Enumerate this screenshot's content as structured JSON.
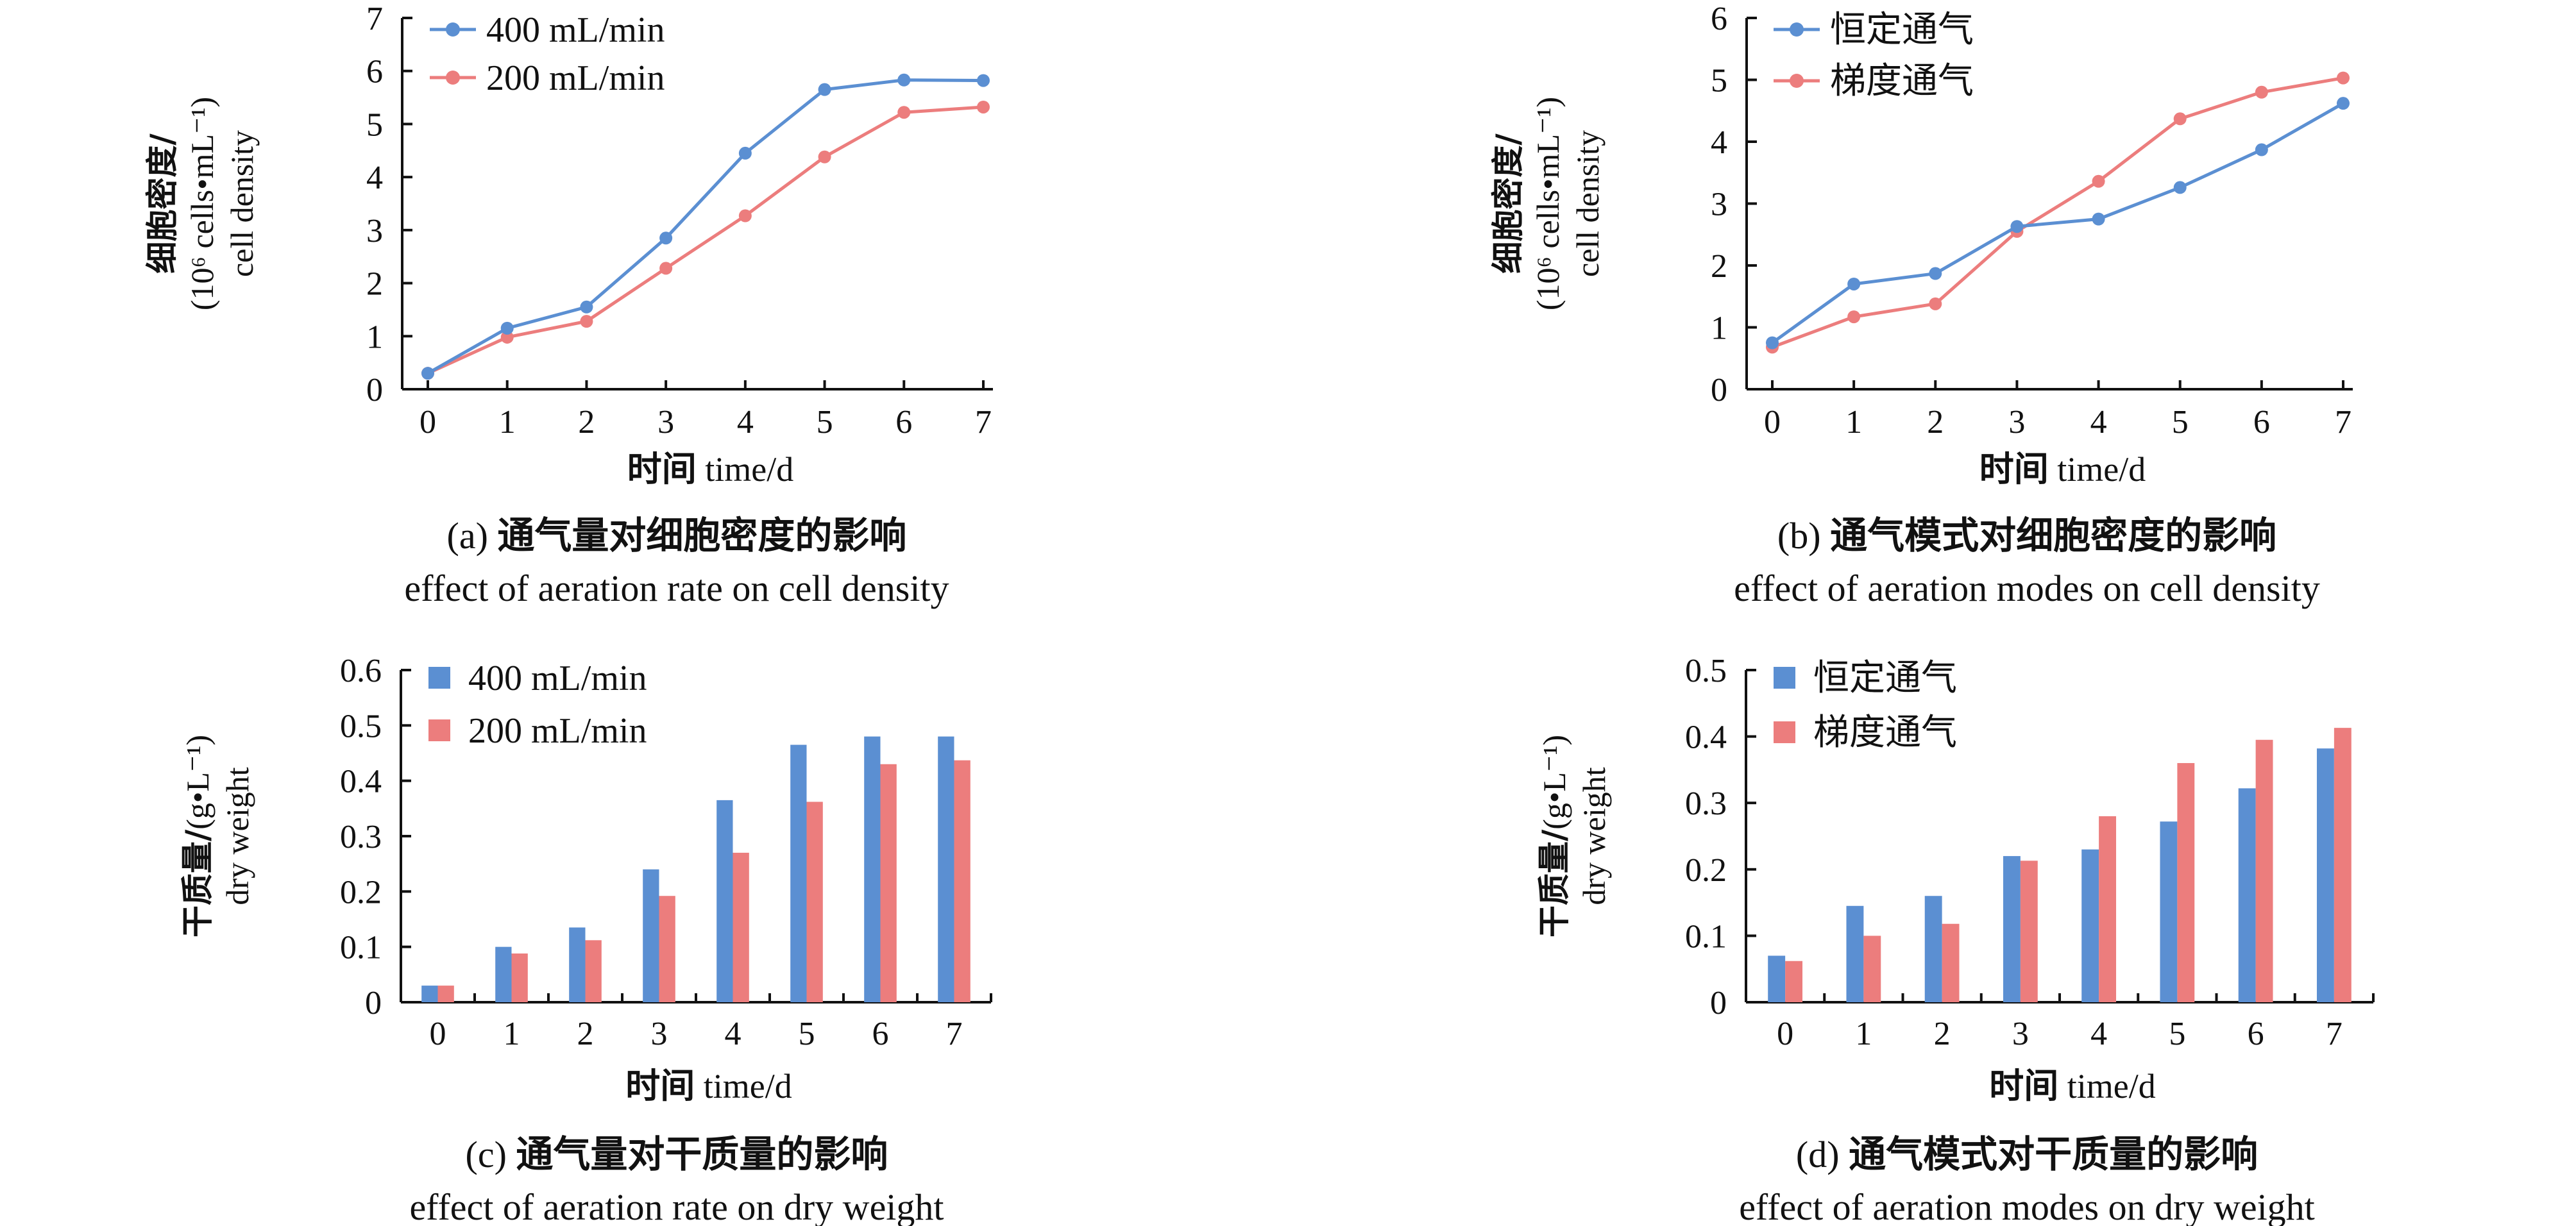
{
  "colors": {
    "series1": "#5b8fd2",
    "series2": "#ec7d7d",
    "axis": "#111111"
  },
  "chart_data": [
    {
      "id": "a",
      "type": "line",
      "caption_zh": "通气量对细胞密度的影响",
      "caption_en": "effect of aeration rate on cell density",
      "caption_prefix": "(a)",
      "xlabel_zh": "时间",
      "xlabel_en": "time/d",
      "ylabel_zh": "细胞密度/",
      "ylabel_unit": "(10⁶ cells•mL⁻¹)",
      "ylabel_en": "cell density",
      "x": [
        0,
        1,
        2,
        3,
        4,
        5,
        6,
        7
      ],
      "ylim": [
        0,
        7
      ],
      "yticks": [
        0,
        1,
        2,
        3,
        4,
        5,
        6,
        7
      ],
      "series": [
        {
          "name": "400 mL/min",
          "values": [
            0.3,
            1.15,
            1.55,
            2.85,
            4.45,
            5.65,
            5.83,
            5.82
          ]
        },
        {
          "name": "200 mL/min",
          "values": [
            0.3,
            0.98,
            1.28,
            2.28,
            3.27,
            4.38,
            5.22,
            5.32
          ]
        }
      ]
    },
    {
      "id": "b",
      "type": "line",
      "caption_zh": "通气模式对细胞密度的影响",
      "caption_en": "effect of aeration modes on cell density",
      "caption_prefix": "(b)",
      "xlabel_zh": "时间",
      "xlabel_en": "time/d",
      "ylabel_zh": "细胞密度/",
      "ylabel_unit": "(10⁶ cells•mL⁻¹)",
      "ylabel_en": "cell density",
      "x": [
        0,
        1,
        2,
        3,
        4,
        5,
        6,
        7
      ],
      "ylim": [
        0,
        6
      ],
      "yticks": [
        0,
        1,
        2,
        3,
        4,
        5,
        6
      ],
      "series": [
        {
          "name": "恒定通气",
          "values": [
            0.75,
            1.7,
            1.87,
            2.63,
            2.75,
            3.26,
            3.87,
            4.62
          ]
        },
        {
          "name": "梯度通气",
          "values": [
            0.68,
            1.17,
            1.38,
            2.55,
            3.36,
            4.37,
            4.8,
            5.03
          ]
        }
      ]
    },
    {
      "id": "c",
      "type": "bar",
      "caption_zh": "通气量对干质量的影响",
      "caption_en": "effect of aeration rate on dry weight",
      "caption_prefix": "(c)",
      "xlabel_zh": "时间",
      "xlabel_en": "time/d",
      "ylabel_zh": "干质量/",
      "ylabel_unit": "(g•L⁻¹)",
      "ylabel_en": "dry weight",
      "categories": [
        "0",
        "1",
        "2",
        "3",
        "4",
        "5",
        "6",
        "7"
      ],
      "ylim": [
        0,
        0.6
      ],
      "yticks": [
        "0",
        "0.1",
        "0.2",
        "0.3",
        "0.4",
        "0.5",
        "0.6"
      ],
      "series": [
        {
          "name": "400 mL/min",
          "values": [
            0.03,
            0.1,
            0.135,
            0.24,
            0.365,
            0.465,
            0.48,
            0.48
          ]
        },
        {
          "name": "200 mL/min",
          "values": [
            0.03,
            0.088,
            0.112,
            0.192,
            0.27,
            0.362,
            0.43,
            0.437
          ]
        }
      ]
    },
    {
      "id": "d",
      "type": "bar",
      "caption_zh": "通气模式对干质量的影响",
      "caption_en": "effect of aeration modes on dry weight",
      "caption_prefix": "(d)",
      "xlabel_zh": "时间",
      "xlabel_en": "time/d",
      "ylabel_zh": "干质量/",
      "ylabel_unit": "(g•L⁻¹)",
      "ylabel_en": "dry weight",
      "categories": [
        "0",
        "1",
        "2",
        "3",
        "4",
        "5",
        "6",
        "7"
      ],
      "ylim": [
        0,
        0.5
      ],
      "yticks": [
        "0",
        "0.1",
        "0.2",
        "0.3",
        "0.4",
        "0.5"
      ],
      "series": [
        {
          "name": "恒定通气",
          "values": [
            0.07,
            0.145,
            0.16,
            0.22,
            0.23,
            0.272,
            0.322,
            0.382
          ]
        },
        {
          "name": "梯度通气",
          "values": [
            0.062,
            0.1,
            0.118,
            0.213,
            0.28,
            0.36,
            0.395,
            0.413
          ]
        }
      ]
    }
  ]
}
